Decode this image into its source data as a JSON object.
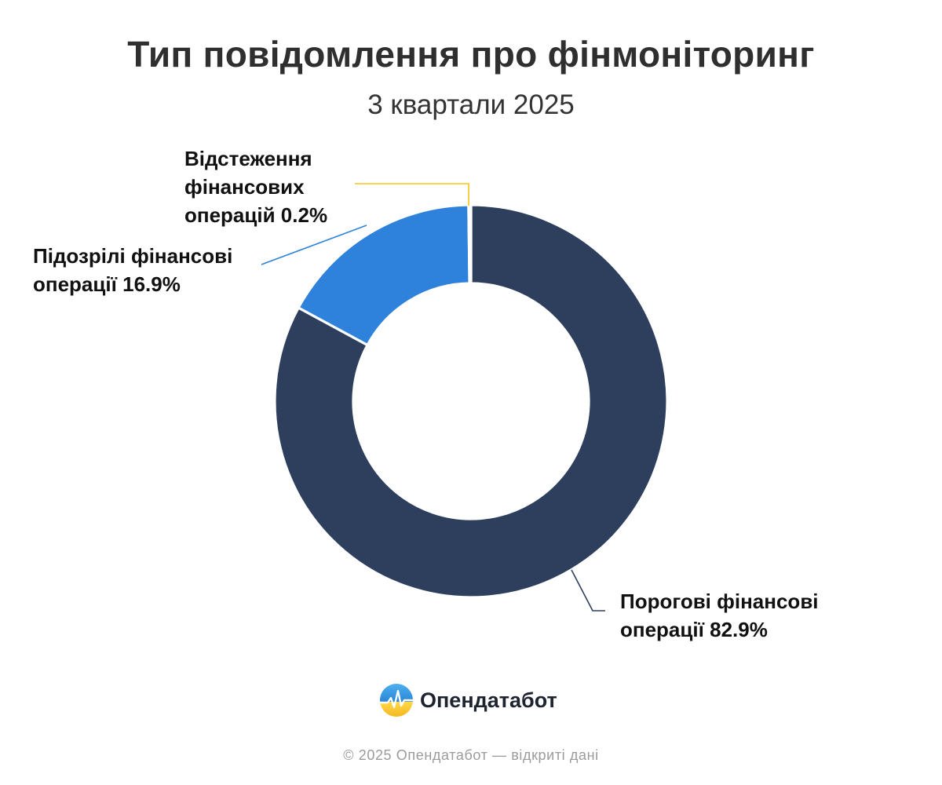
{
  "header": {
    "title": "Тип повідомлення про фінмоніторинг",
    "subtitle": "3 квартали 2025"
  },
  "chart_data": {
    "type": "pie",
    "title": "Тип повідомлення про фінмоніторинг",
    "subtitle": "3 квартали 2025",
    "donut": true,
    "slices": [
      {
        "name": "Порогові фінансові операції",
        "label_lines": [
          "Порогові фінансові",
          "операції 82.9%"
        ],
        "value": 82.9,
        "color": "#2e3f5e"
      },
      {
        "name": "Підозрілі фінансові операції",
        "label_lines": [
          "Підозрілі фінансові",
          "операції 16.9%"
        ],
        "value": 16.9,
        "color": "#2f82db"
      },
      {
        "name": "Відстеження фінансових операцій",
        "label_lines": [
          "Відстеження",
          "фінансових",
          "операцій 0.2%"
        ],
        "value": 0.2,
        "color": "#f5c518"
      }
    ],
    "legend": "none"
  },
  "branding": {
    "name": "Опендатабот",
    "logo_icon": "opendatabot-logo-icon"
  },
  "footer": {
    "text": "© 2025 Опендатабот — відкриті дані"
  }
}
